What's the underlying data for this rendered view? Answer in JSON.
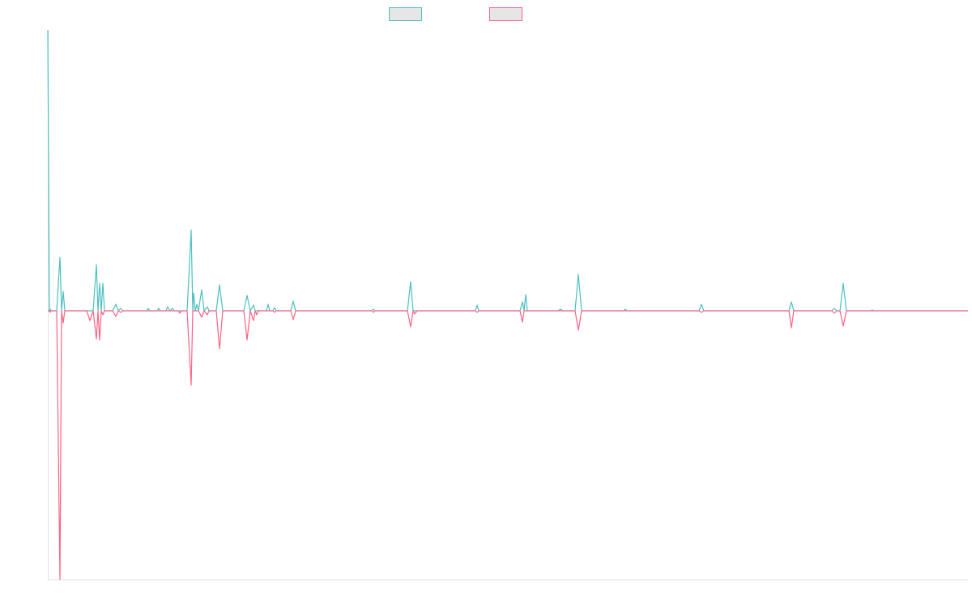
{
  "chart_data": {
    "type": "line",
    "x": [
      0,
      2,
      3,
      4,
      11,
      15,
      17,
      19,
      21,
      48,
      52,
      56,
      60,
      62,
      64,
      66,
      68,
      70,
      80,
      84,
      87,
      90,
      93,
      122,
      124,
      126,
      135,
      137,
      139,
      146,
      148,
      151,
      154,
      156,
      161,
      163,
      165,
      172,
      177,
      179,
      180,
      182,
      184,
      186,
      190,
      193,
      197,
      199,
      208,
      212,
      216,
      242,
      246,
      250,
      254,
      256,
      258,
      260,
      270,
      272,
      274,
      278,
      280,
      282,
      300,
      303,
      306,
      400,
      402,
      404,
      444,
      448,
      451,
      453,
      456,
      528,
      530,
      532,
      583,
      586,
      588,
      590,
      592,
      630,
      633,
      636,
      651,
      655,
      659,
      711,
      713,
      715,
      804,
      807,
      810,
      915,
      918,
      921,
      968,
      971,
      974,
      978,
      982,
      986,
      1016,
      1018,
      1020,
      1136
    ],
    "xlim": [
      0,
      1136
    ],
    "ylim": [
      -332,
      347
    ],
    "series": [
      {
        "color": "#4bc0c0",
        "values": [
          347,
          0,
          2,
          0,
          0,
          66,
          0,
          24,
          0,
          0,
          0,
          0,
          57,
          0,
          34,
          0,
          34,
          0,
          0,
          8,
          0,
          3,
          0,
          0,
          3,
          0,
          0,
          3,
          0,
          0,
          5,
          0,
          3,
          0,
          0,
          0,
          0,
          0,
          100,
          0,
          22,
          0,
          8,
          0,
          26,
          0,
          5,
          0,
          0,
          32,
          0,
          0,
          19,
          0,
          7,
          0,
          0,
          0,
          0,
          8,
          0,
          0,
          4,
          0,
          0,
          12,
          0,
          0,
          2,
          0,
          0,
          36,
          0,
          0,
          0,
          0,
          7,
          0,
          0,
          11,
          0,
          20,
          0,
          0,
          2,
          0,
          0,
          45,
          0,
          0,
          2,
          0,
          0,
          8,
          0,
          0,
          11,
          0,
          0,
          3,
          0,
          0,
          34,
          0,
          0,
          1,
          0,
          0
        ]
      },
      {
        "color": "#ff6384",
        "values": [
          0,
          0,
          -2,
          0,
          0,
          -332,
          0,
          -15,
          0,
          0,
          -12,
          0,
          -35,
          0,
          -36,
          0,
          -5,
          0,
          0,
          -7,
          0,
          -2,
          0,
          0,
          0,
          0,
          0,
          0,
          0,
          0,
          0,
          0,
          0,
          0,
          0,
          -3,
          0,
          0,
          -92,
          0,
          0,
          0,
          0,
          0,
          -8,
          0,
          -5,
          0,
          0,
          -47,
          0,
          0,
          -36,
          0,
          -12,
          0,
          -5,
          0,
          0,
          0,
          0,
          0,
          -2,
          0,
          0,
          -11,
          0,
          0,
          -2,
          0,
          0,
          -20,
          0,
          -4,
          0,
          0,
          -2,
          0,
          0,
          -14,
          0,
          0,
          0,
          0,
          0,
          0,
          0,
          -24,
          0,
          0,
          0,
          0,
          0,
          -2,
          0,
          0,
          -21,
          0,
          0,
          -3,
          0,
          0,
          -19,
          0,
          0,
          0,
          0,
          0
        ]
      }
    ]
  }
}
